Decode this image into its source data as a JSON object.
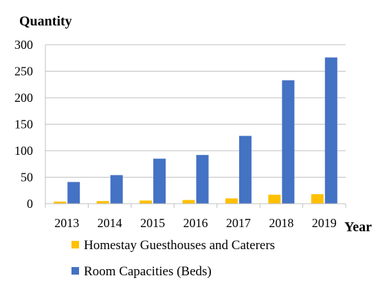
{
  "chart_data": {
    "type": "bar",
    "ylabel": "Quantity",
    "xlabel": "Year",
    "categories": [
      "2013",
      "2014",
      "2015",
      "2016",
      "2017",
      "2018",
      "2019"
    ],
    "series": [
      {
        "name": "Homestay Guesthouses and Caterers",
        "color": "#ffc000",
        "values": [
          4,
          5,
          6,
          7,
          10,
          17,
          18
        ]
      },
      {
        "name": "Room Capacities (Beds)",
        "color": "#4472c4",
        "values": [
          41,
          54,
          85,
          92,
          128,
          233,
          276
        ]
      }
    ],
    "yticks": [
      0,
      50,
      100,
      150,
      200,
      250,
      300
    ],
    "ylim": [
      0,
      300
    ],
    "grid": true,
    "legend": "bottom"
  }
}
